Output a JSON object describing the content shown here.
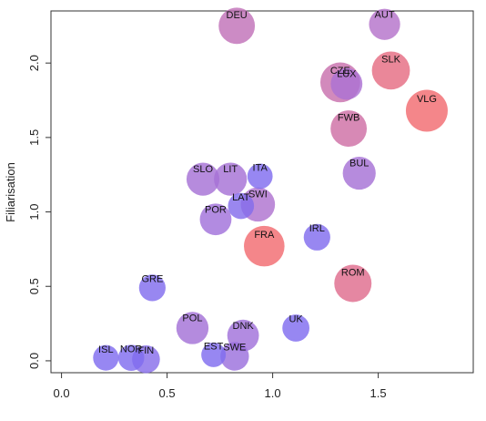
{
  "chart_data": {
    "type": "scatter",
    "xlabel": "",
    "ylabel": "Filiarisation",
    "xlim": [
      -0.05,
      1.95
    ],
    "ylim": [
      -0.08,
      2.35
    ],
    "xticks": [
      "0.0",
      "0.5",
      "1.0",
      "1.5"
    ],
    "xtick_values": [
      0.0,
      0.5,
      1.0,
      1.5
    ],
    "yticks": [
      "0.0",
      "0.5",
      "1.0",
      "1.5",
      "2.0"
    ],
    "ytick_values": [
      0.0,
      0.5,
      1.0,
      1.5,
      2.0
    ],
    "grid": false,
    "color_scale": {
      "low": "#7b6cf2",
      "mid": "#b173cf",
      "high": "#f26b70"
    },
    "points": [
      {
        "label": "DEU",
        "x": 0.83,
        "y": 2.25,
        "size": 0.78,
        "tone": 0.62
      },
      {
        "label": "AUT",
        "x": 1.53,
        "y": 2.26,
        "size": 0.58,
        "tone": 0.52
      },
      {
        "label": "SLK",
        "x": 1.56,
        "y": 1.95,
        "size": 0.85,
        "tone": 0.9
      },
      {
        "label": "CZE",
        "x": 1.32,
        "y": 1.87,
        "size": 0.92,
        "tone": 0.68
      },
      {
        "label": "LUX",
        "x": 1.35,
        "y": 1.86,
        "size": 0.6,
        "tone": 0.45
      },
      {
        "label": "VLG",
        "x": 1.73,
        "y": 1.68,
        "size": 1.0,
        "tone": 1.0
      },
      {
        "label": "FWB",
        "x": 1.36,
        "y": 1.56,
        "size": 0.78,
        "tone": 0.72
      },
      {
        "label": "BUL",
        "x": 1.41,
        "y": 1.26,
        "size": 0.65,
        "tone": 0.4
      },
      {
        "label": "ITA",
        "x": 0.94,
        "y": 1.24,
        "size": 0.35,
        "tone": 0.05
      },
      {
        "label": "SLO",
        "x": 0.67,
        "y": 1.22,
        "size": 0.65,
        "tone": 0.4
      },
      {
        "label": "LIT",
        "x": 0.8,
        "y": 1.22,
        "size": 0.65,
        "tone": 0.4
      },
      {
        "label": "LAT",
        "x": 0.85,
        "y": 1.04,
        "size": 0.38,
        "tone": 0.08
      },
      {
        "label": "SWI",
        "x": 0.93,
        "y": 1.05,
        "size": 0.7,
        "tone": 0.48
      },
      {
        "label": "POR",
        "x": 0.73,
        "y": 0.95,
        "size": 0.6,
        "tone": 0.35
      },
      {
        "label": "IRL",
        "x": 1.21,
        "y": 0.83,
        "size": 0.4,
        "tone": 0.06
      },
      {
        "label": "FRA",
        "x": 0.96,
        "y": 0.77,
        "size": 0.95,
        "tone": 1.0
      },
      {
        "label": "GRE",
        "x": 0.43,
        "y": 0.49,
        "size": 0.4,
        "tone": 0.06
      },
      {
        "label": "ROM",
        "x": 1.38,
        "y": 0.52,
        "size": 0.82,
        "tone": 0.85
      },
      {
        "label": "POL",
        "x": 0.62,
        "y": 0.22,
        "size": 0.62,
        "tone": 0.38
      },
      {
        "label": "UK",
        "x": 1.11,
        "y": 0.22,
        "size": 0.42,
        "tone": 0.05
      },
      {
        "label": "DNK",
        "x": 0.86,
        "y": 0.17,
        "size": 0.6,
        "tone": 0.35
      },
      {
        "label": "ISL",
        "x": 0.21,
        "y": 0.02,
        "size": 0.36,
        "tone": 0.05
      },
      {
        "label": "NOR",
        "x": 0.33,
        "y": 0.02,
        "size": 0.38,
        "tone": 0.05
      },
      {
        "label": "FIN",
        "x": 0.4,
        "y": 0.01,
        "size": 0.45,
        "tone": 0.12
      },
      {
        "label": "EST",
        "x": 0.72,
        "y": 0.04,
        "size": 0.32,
        "tone": 0.05
      },
      {
        "label": "SWE",
        "x": 0.82,
        "y": 0.03,
        "size": 0.48,
        "tone": 0.3
      }
    ]
  }
}
